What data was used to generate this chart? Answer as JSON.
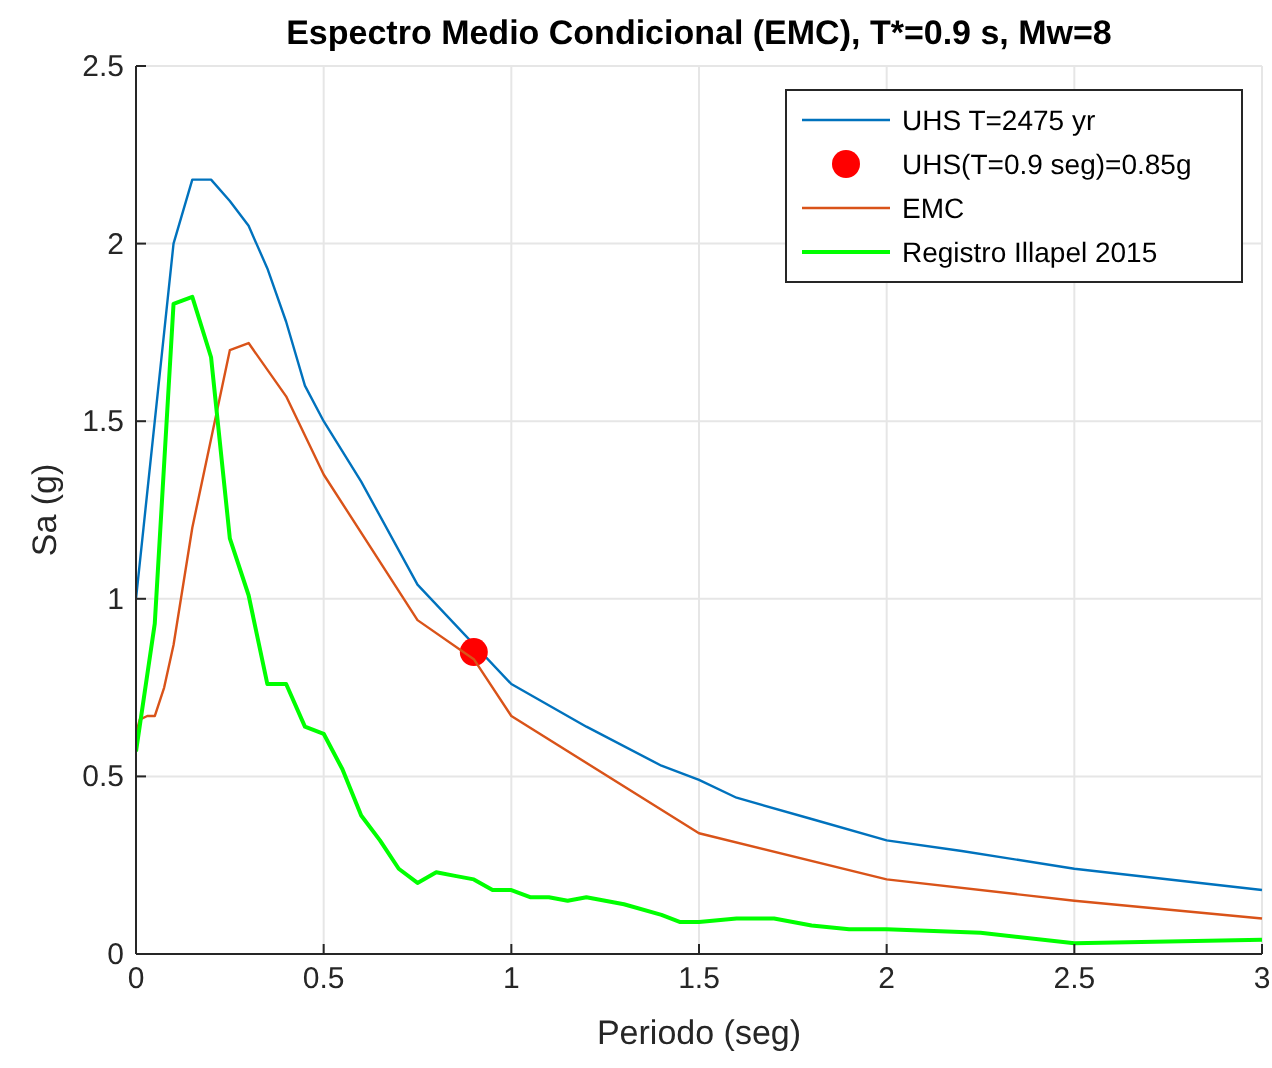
{
  "chart_data": {
    "type": "line",
    "title": "Espectro Medio Condicional (EMC), T*=0.9 s, Mw=8",
    "xlabel": "Periodo (seg)",
    "ylabel": "Sa (g)",
    "xlim": [
      0,
      3
    ],
    "xticks": [
      0,
      0.5,
      1,
      1.5,
      2,
      2.5,
      3
    ],
    "ylim": [
      0,
      2.5
    ],
    "yticks": [
      0,
      0.5,
      1,
      1.5,
      2,
      2.5
    ],
    "grid": true,
    "legend": "top right",
    "series": [
      {
        "name": "UHS T=2475 yr",
        "color": "#0072bd",
        "x": [
          0,
          0.02,
          0.05,
          0.075,
          0.1,
          0.15,
          0.2,
          0.25,
          0.3,
          0.35,
          0.4,
          0.45,
          0.5,
          0.6,
          0.75,
          1.0,
          1.2,
          1.4,
          1.5,
          1.6,
          1.8,
          2.0,
          2.2,
          2.5,
          3.0
        ],
        "values": [
          1.0,
          1.2,
          1.5,
          1.75,
          2.0,
          2.18,
          2.18,
          2.12,
          2.05,
          1.93,
          1.78,
          1.6,
          1.5,
          1.33,
          1.04,
          0.76,
          0.64,
          0.53,
          0.49,
          0.44,
          0.38,
          0.32,
          0.29,
          0.24,
          0.18
        ]
      },
      {
        "name": "UHS(T=0.9 seg)=0.85g",
        "type": "scatter",
        "marker": "circle",
        "color": "#ff0000",
        "x": [
          0.9
        ],
        "values": [
          0.85
        ]
      },
      {
        "name": "EMC",
        "color": "#d95319",
        "x": [
          0,
          0.01,
          0.03,
          0.05,
          0.075,
          0.1,
          0.15,
          0.2,
          0.25,
          0.3,
          0.4,
          0.5,
          0.75,
          0.9,
          1.0,
          1.5,
          2.0,
          2.5,
          3.0
        ],
        "values": [
          0.62,
          0.66,
          0.67,
          0.67,
          0.75,
          0.87,
          1.2,
          1.45,
          1.7,
          1.72,
          1.57,
          1.35,
          0.94,
          0.83,
          0.67,
          0.34,
          0.21,
          0.15,
          0.1
        ]
      },
      {
        "name": "Registro Illapel 2015",
        "color": "#00ff00",
        "x": [
          0,
          0.05,
          0.1,
          0.15,
          0.2,
          0.25,
          0.3,
          0.35,
          0.4,
          0.45,
          0.5,
          0.55,
          0.6,
          0.65,
          0.7,
          0.75,
          0.8,
          0.85,
          0.9,
          0.95,
          1.0,
          1.05,
          1.1,
          1.15,
          1.2,
          1.3,
          1.4,
          1.45,
          1.5,
          1.6,
          1.7,
          1.8,
          1.9,
          2.0,
          2.25,
          2.5,
          3.0
        ],
        "values": [
          0.57,
          0.93,
          1.83,
          1.85,
          1.68,
          1.17,
          1.01,
          0.76,
          0.76,
          0.64,
          0.62,
          0.52,
          0.39,
          0.32,
          0.24,
          0.2,
          0.23,
          0.22,
          0.21,
          0.18,
          0.18,
          0.16,
          0.16,
          0.15,
          0.16,
          0.14,
          0.11,
          0.09,
          0.09,
          0.1,
          0.1,
          0.08,
          0.07,
          0.07,
          0.06,
          0.03,
          0.04
        ]
      }
    ]
  }
}
